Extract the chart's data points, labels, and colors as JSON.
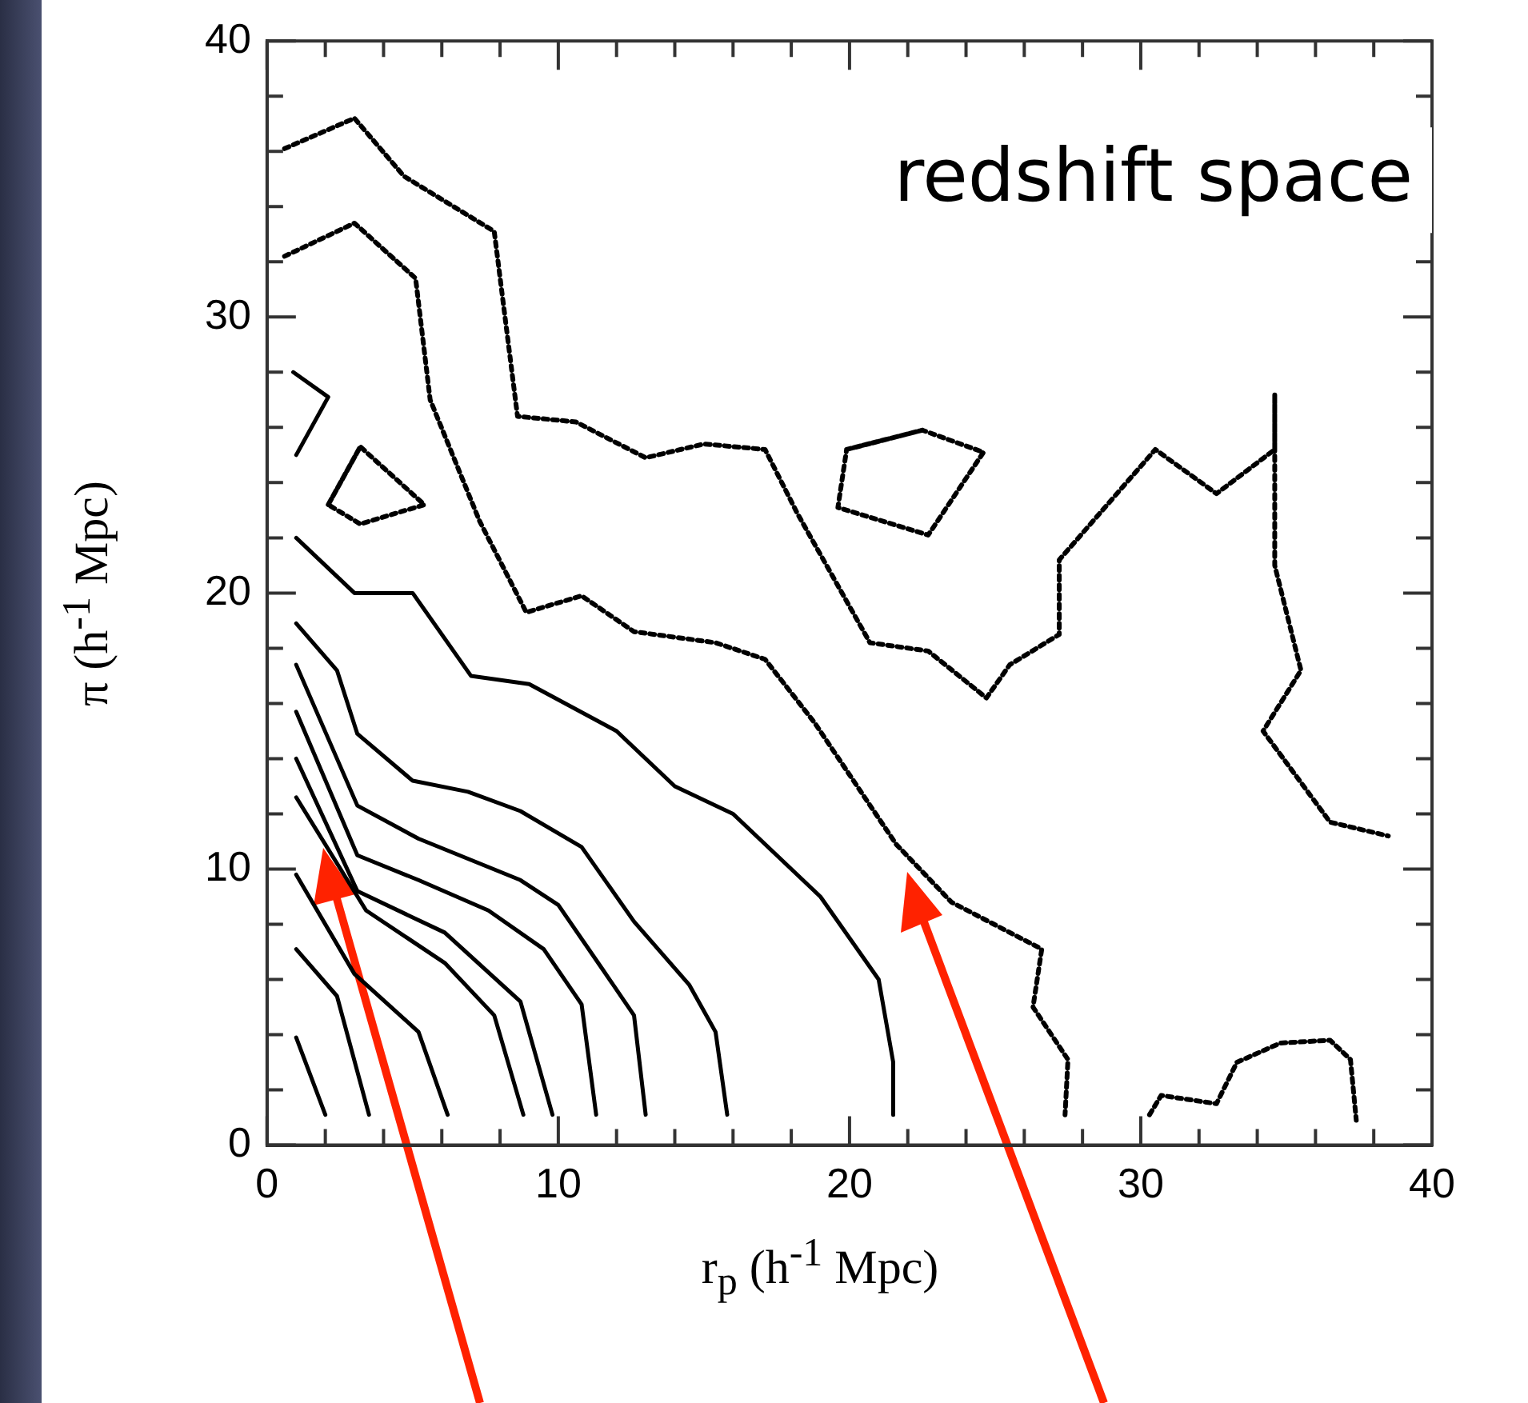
{
  "chart_data": {
    "type": "line",
    "xlabel": "r$_{p}$  (h$^{-1}$ Mpc)",
    "ylabel": "π  (h$^{-1}$ Mpc)",
    "annotations": [
      "redshift space"
    ],
    "xlim": [
      0,
      40
    ],
    "ylim": [
      0,
      40
    ],
    "xticks": [
      0,
      {
        "value": 2,
        "label": null
      },
      {
        "value": 4,
        "label": null
      },
      {
        "value": 6,
        "label": null
      },
      {
        "value": 8,
        "label": null
      },
      10,
      {
        "value": 12,
        "label": null
      },
      {
        "value": 14,
        "label": null
      },
      {
        "value": 16,
        "label": null
      },
      {
        "value": 18,
        "label": null
      },
      20,
      {
        "value": 22,
        "label": null
      },
      {
        "value": 24,
        "label": null
      },
      {
        "value": 26,
        "label": null
      },
      {
        "value": 28,
        "label": null
      },
      30,
      {
        "value": 32,
        "label": null
      },
      {
        "value": 34,
        "label": null
      },
      {
        "value": 36,
        "label": null
      },
      {
        "value": 38,
        "label": null
      },
      40
    ],
    "yticks": [
      0,
      {
        "value": 2,
        "label": null
      },
      {
        "value": 4,
        "label": null
      },
      {
        "value": 6,
        "label": null
      },
      {
        "value": 8,
        "label": null
      },
      10,
      {
        "value": 12,
        "label": null
      },
      {
        "value": 14,
        "label": null
      },
      {
        "value": 16,
        "label": null
      },
      {
        "value": 18,
        "label": null
      },
      20,
      {
        "value": 22,
        "label": null
      },
      {
        "value": 24,
        "label": null
      },
      {
        "value": 26,
        "label": null
      },
      {
        "value": 28,
        "label": null
      },
      30,
      {
        "value": 32,
        "label": null
      },
      {
        "value": 34,
        "label": null
      },
      {
        "value": 36,
        "label": null
      },
      {
        "value": 38,
        "label": null
      },
      40
    ],
    "grid": false,
    "legend": false,
    "marker": "none",
    "series": [
      {
        "type": "line",
        "color": "#000000",
        "line_style": "solid",
        "x": [
          1,
          3,
          5,
          7,
          9,
          12,
          14,
          16,
          19,
          21,
          21.5,
          21.5
        ],
        "values": [
          22,
          20,
          20,
          17,
          16.7,
          15,
          13,
          12,
          9,
          6,
          3,
          1.1
        ]
      },
      {
        "type": "line",
        "color": "#000000",
        "line_style": "solid",
        "x": [
          1,
          2.4,
          3.1,
          5,
          6.9,
          8.7,
          10.8,
          12.6,
          14.5,
          15.4,
          15.8
        ],
        "values": [
          18.9,
          17.2,
          14.9,
          13.2,
          12.8,
          12.1,
          10.8,
          8.1,
          5.8,
          4.1,
          1.1
        ]
      },
      {
        "type": "line",
        "color": "#000000",
        "line_style": "solid",
        "x": [
          1,
          3.1,
          5.2,
          8.7,
          10,
          11.5,
          12.6,
          13
        ],
        "values": [
          17.4,
          12.3,
          11.1,
          9.6,
          8.7,
          6.4,
          4.7,
          1.1
        ]
      },
      {
        "type": "line",
        "color": "#000000",
        "line_style": "solid",
        "x": [
          1,
          3.1,
          5.2,
          7.6,
          9.5,
          10.8,
          11.3
        ],
        "values": [
          15.7,
          10.5,
          9.6,
          8.5,
          7.1,
          5.1,
          1.1
        ]
      },
      {
        "type": "line",
        "color": "#000000",
        "line_style": "solid",
        "x": [
          1,
          3.1,
          6.1,
          8.7,
          9.8
        ],
        "values": [
          14,
          9.2,
          7.7,
          5.2,
          1.1
        ]
      },
      {
        "type": "line",
        "color": "#000000",
        "line_style": "solid",
        "x": [
          1,
          3.4,
          6.1,
          7.8,
          8.8
        ],
        "values": [
          12.6,
          8.5,
          6.6,
          4.7,
          1.1
        ]
      },
      {
        "type": "line",
        "color": "#000000",
        "line_style": "solid",
        "x": [
          1,
          3,
          5.2,
          6.2
        ],
        "values": [
          9.8,
          6.2,
          4.1,
          1.1
        ]
      },
      {
        "type": "line",
        "color": "#000000",
        "line_style": "solid",
        "x": [
          1,
          2.4,
          3.5
        ],
        "values": [
          7.1,
          5.4,
          1.1
        ]
      },
      {
        "type": "line",
        "color": "#000000",
        "line_style": "solid",
        "x": [
          1,
          2
        ],
        "values": [
          3.9,
          1.1
        ]
      },
      {
        "type": "line",
        "color": "#000000",
        "line_style": "solid",
        "x": [
          0.9,
          2.1,
          1
        ],
        "values": [
          28,
          27.1,
          25
        ]
      },
      {
        "type": "line",
        "color": "#000000",
        "line_style": "dotted",
        "x": [
          0.6,
          3,
          4.7,
          7.8,
          8.6,
          10.6,
          13,
          15,
          17.1,
          18.2,
          20.7,
          22.7,
          24.7,
          25.5,
          27.2,
          27.2,
          30.5,
          32.6,
          34.6,
          34.6,
          34.6,
          35.5,
          34.2,
          36.5,
          38.5
        ],
        "values": [
          36.1,
          37.2,
          35.1,
          33.1,
          26.4,
          26.2,
          24.9,
          25.4,
          25.2,
          22.9,
          18.2,
          17.9,
          16.2,
          17.4,
          18.5,
          21.2,
          25.2,
          23.6,
          25.2,
          27.2,
          21,
          17.2,
          15,
          11.7,
          11.2
        ]
      },
      {
        "type": "line",
        "color": "#000000",
        "line_style": "dotted",
        "x": [
          0.6,
          3,
          5.1,
          5.6,
          7.3,
          8.9,
          10.8,
          12.6,
          15.4,
          17.1,
          18.8,
          21.6,
          23.5,
          26.6,
          26.3,
          27.5,
          27.4
        ],
        "values": [
          32.2,
          33.4,
          31.4,
          27,
          22.6,
          19.3,
          19.9,
          18.6,
          18.2,
          17.6,
          15.3,
          10.9,
          8.8,
          7.1,
          5,
          3.1,
          1.1
        ]
      },
      {
        "type": "line",
        "color": "#000000",
        "line_style": "dotted",
        "x": [
          2.1,
          3.2,
          5.4,
          3.2,
          2.1,
          3.2
        ],
        "values": [
          23.2,
          25.3,
          23.2,
          22.5,
          23.2,
          25.3
        ]
      },
      {
        "type": "line",
        "color": "#000000",
        "line_style": "dotted",
        "x": [
          19.9,
          22.5,
          24.6,
          22.7,
          19.6,
          19.9,
          22.5
        ],
        "values": [
          25.2,
          25.9,
          25.1,
          22.1,
          23.1,
          25.2,
          25.9
        ]
      },
      {
        "type": "line",
        "color": "#000000",
        "line_style": "dotted",
        "x": [
          30.3,
          30.7,
          32.6,
          33.3,
          34.8,
          36.5,
          37.2,
          37.4
        ],
        "values": [
          1.1,
          1.8,
          1.5,
          3,
          3.7,
          3.8,
          3.1,
          0.9
        ]
      }
    ]
  }
}
